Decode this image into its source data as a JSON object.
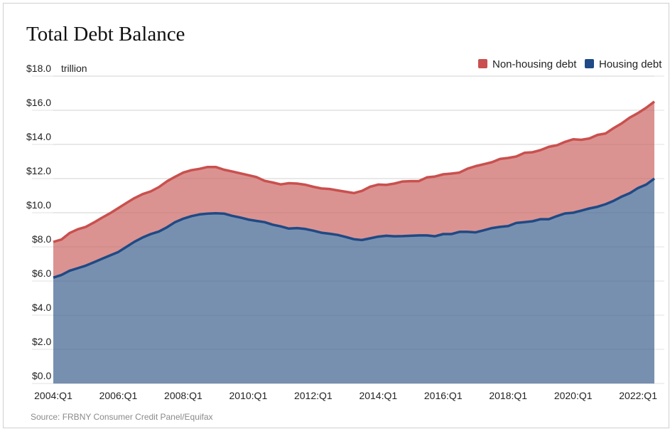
{
  "chart_data": {
    "type": "area",
    "stacked": true,
    "title": "Total Debt Balance",
    "yunit": "trillion",
    "source": "Source: FRBNY Consumer Credit Panel/Equifax",
    "ylim": [
      0,
      18
    ],
    "yticks": [
      "$0.0",
      "$2.0",
      "$4.0",
      "$6.0",
      "$8.0",
      "$10.0",
      "$12.0",
      "$14.0",
      "$16.0",
      "$18.0"
    ],
    "ytick_values": [
      0,
      2,
      4,
      6,
      8,
      10,
      12,
      14,
      16,
      18
    ],
    "xticks": [
      "2004:Q1",
      "2006:Q1",
      "2008:Q1",
      "2010:Q1",
      "2012:Q1",
      "2014:Q1",
      "2016:Q1",
      "2018:Q1",
      "2020:Q1",
      "2022:Q1"
    ],
    "grid": true,
    "legend_position": "top-right",
    "x": [
      "2004:Q1",
      "2004:Q2",
      "2004:Q3",
      "2004:Q4",
      "2005:Q1",
      "2005:Q2",
      "2005:Q3",
      "2005:Q4",
      "2006:Q1",
      "2006:Q2",
      "2006:Q3",
      "2006:Q4",
      "2007:Q1",
      "2007:Q2",
      "2007:Q3",
      "2007:Q4",
      "2008:Q1",
      "2008:Q2",
      "2008:Q3",
      "2008:Q4",
      "2009:Q1",
      "2009:Q2",
      "2009:Q3",
      "2009:Q4",
      "2010:Q1",
      "2010:Q2",
      "2010:Q3",
      "2010:Q4",
      "2011:Q1",
      "2011:Q2",
      "2011:Q3",
      "2011:Q4",
      "2012:Q1",
      "2012:Q2",
      "2012:Q3",
      "2012:Q4",
      "2013:Q1",
      "2013:Q2",
      "2013:Q3",
      "2013:Q4",
      "2014:Q1",
      "2014:Q2",
      "2014:Q3",
      "2014:Q4",
      "2015:Q1",
      "2015:Q2",
      "2015:Q3",
      "2015:Q4",
      "2016:Q1",
      "2016:Q2",
      "2016:Q3",
      "2016:Q4",
      "2017:Q1",
      "2017:Q2",
      "2017:Q3",
      "2017:Q4",
      "2018:Q1",
      "2018:Q2",
      "2018:Q3",
      "2018:Q4",
      "2019:Q1",
      "2019:Q2",
      "2019:Q3",
      "2019:Q4",
      "2020:Q1",
      "2020:Q2",
      "2020:Q3",
      "2020:Q4",
      "2021:Q1",
      "2021:Q2",
      "2021:Q3",
      "2021:Q4",
      "2022:Q1",
      "2022:Q2",
      "2022:Q3"
    ],
    "series": [
      {
        "name": "Housing debt",
        "color": "#1f4a85",
        "fill": "#7890b0",
        "values": [
          6.2,
          6.35,
          6.6,
          6.75,
          6.9,
          7.1,
          7.3,
          7.5,
          7.7,
          8.0,
          8.3,
          8.55,
          8.75,
          8.9,
          9.15,
          9.45,
          9.65,
          9.8,
          9.9,
          9.95,
          9.97,
          9.95,
          9.82,
          9.72,
          9.6,
          9.52,
          9.45,
          9.3,
          9.2,
          9.07,
          9.1,
          9.05,
          8.95,
          8.83,
          8.77,
          8.7,
          8.58,
          8.45,
          8.4,
          8.5,
          8.6,
          8.65,
          8.62,
          8.63,
          8.65,
          8.67,
          8.67,
          8.62,
          8.75,
          8.75,
          8.88,
          8.88,
          8.85,
          8.97,
          9.1,
          9.17,
          9.22,
          9.4,
          9.45,
          9.5,
          9.62,
          9.62,
          9.8,
          9.96,
          10.0,
          10.12,
          10.25,
          10.35,
          10.5,
          10.7,
          10.95,
          11.15,
          11.45,
          11.65,
          12.0
        ]
      },
      {
        "name": "Non-housing debt",
        "color": "#c9504e",
        "fill": "#db9391",
        "values": [
          2.09,
          2.08,
          2.21,
          2.28,
          2.27,
          2.33,
          2.41,
          2.47,
          2.57,
          2.57,
          2.56,
          2.54,
          2.5,
          2.6,
          2.69,
          2.66,
          2.7,
          2.69,
          2.67,
          2.73,
          2.71,
          2.57,
          2.6,
          2.59,
          2.6,
          2.57,
          2.42,
          2.47,
          2.46,
          2.66,
          2.61,
          2.59,
          2.57,
          2.59,
          2.62,
          2.61,
          2.65,
          2.7,
          2.88,
          3.02,
          3.05,
          2.98,
          3.09,
          3.2,
          3.2,
          3.18,
          3.4,
          3.5,
          3.5,
          3.54,
          3.47,
          3.7,
          3.88,
          3.87,
          3.86,
          3.98,
          3.99,
          3.89,
          4.06,
          4.04,
          4.05,
          4.24,
          4.15,
          4.19,
          4.3,
          4.15,
          4.1,
          4.21,
          4.14,
          4.26,
          4.29,
          4.43,
          4.39,
          4.5,
          4.51
        ]
      }
    ]
  }
}
